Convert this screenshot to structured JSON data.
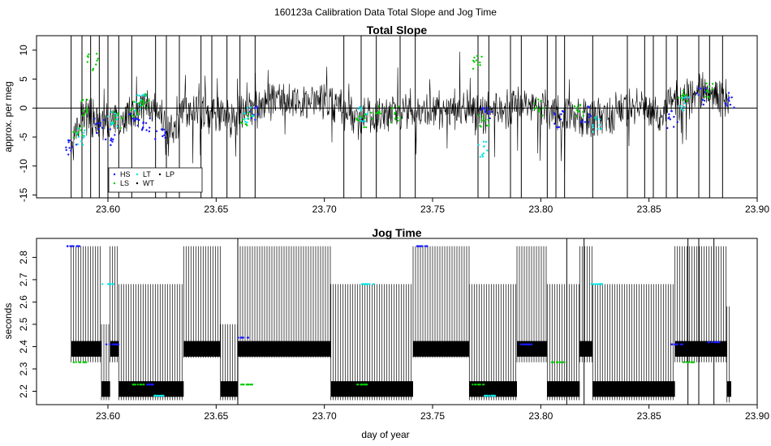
{
  "title": "160123a   Calibration Data Total Slope and Jog Time",
  "chart_data": [
    {
      "type": "scatter",
      "title": "Total Slope",
      "xlabel": "",
      "ylabel": "approx. per meg",
      "xlim": [
        23.567,
        23.9
      ],
      "ylim": [
        -15.5,
        12.5
      ],
      "xticks": [
        "23.60",
        "23.65",
        "23.70",
        "23.75",
        "23.80",
        "23.85",
        "23.90"
      ],
      "yticks": [
        "-15",
        "-10",
        "-5",
        "0",
        "5",
        "10"
      ],
      "reference_line_y": 0,
      "series": [
        {
          "name": "HS",
          "color": "#1a1aff",
          "x": [
            23.583,
            23.596,
            23.601,
            23.612,
            23.618,
            23.624,
            23.667,
            23.775,
            23.808,
            23.821,
            23.861,
            23.874,
            23.887
          ],
          "y": [
            -7,
            -3,
            -5,
            -2,
            -3,
            -4,
            -1,
            -1,
            -2,
            -1,
            -2,
            2,
            1.5
          ]
        },
        {
          "name": "LS",
          "color": "#00cc00",
          "x": [
            23.586,
            23.589,
            23.593,
            23.605,
            23.613,
            23.617,
            23.664,
            23.717,
            23.724,
            23.733,
            23.771,
            23.774,
            23.799,
            23.818,
            23.866,
            23.877
          ],
          "y": [
            -4,
            0,
            8,
            -2,
            0,
            1,
            -2,
            -2,
            -1,
            -1,
            8,
            -2,
            0,
            0,
            2,
            3
          ]
        },
        {
          "name": "LT",
          "color": "#00e5e5",
          "x": [
            23.588,
            23.602,
            23.615,
            23.665,
            23.718,
            23.773,
            23.826,
            23.866
          ],
          "y": [
            -5,
            -2,
            1,
            -1,
            -1,
            -7,
            -3,
            1
          ]
        },
        {
          "name": "WT",
          "color": "#000000",
          "x": [
            23.64,
            23.68,
            23.71,
            23.74,
            23.79,
            23.84
          ],
          "y": [
            -2,
            -1,
            -2,
            -1,
            -2,
            -1
          ]
        },
        {
          "name": "LP",
          "color": "#000000",
          "x": [
            23.65,
            23.7,
            23.76,
            23.83,
            23.855
          ],
          "y": [
            -3,
            1,
            -2,
            0,
            -4
          ]
        }
      ],
      "legend": {
        "position": "bottom-left",
        "entries": [
          "HS",
          "LT",
          "LP",
          "LS",
          "WT"
        ]
      }
    },
    {
      "type": "line",
      "title": "Jog Time",
      "xlabel": "day of year",
      "ylabel": "seconds",
      "xlim": [
        23.567,
        23.9
      ],
      "ylim": [
        2.14,
        2.885
      ],
      "xticks": [
        "23.60",
        "23.65",
        "23.70",
        "23.75",
        "23.80",
        "23.85",
        "23.90"
      ],
      "yticks": [
        "2.2",
        "2.3",
        "2.4",
        "2.5",
        "2.6",
        "2.7",
        "2.8"
      ],
      "segments": [
        {
          "x0": 23.583,
          "x1": 23.597,
          "high": 2.85,
          "low": 2.33
        },
        {
          "x0": 23.597,
          "x1": 23.601,
          "high": 2.5,
          "low": 2.16
        },
        {
          "x0": 23.601,
          "x1": 23.605,
          "high": 2.85,
          "low": 2.33
        },
        {
          "x0": 23.605,
          "x1": 23.635,
          "high": 2.68,
          "low": 2.16
        },
        {
          "x0": 23.635,
          "x1": 23.652,
          "high": 2.85,
          "low": 2.35
        },
        {
          "x0": 23.652,
          "x1": 23.66,
          "high": 2.5,
          "low": 2.16
        },
        {
          "x0": 23.66,
          "x1": 23.703,
          "high": 2.85,
          "low": 2.35
        },
        {
          "x0": 23.703,
          "x1": 23.741,
          "high": 2.68,
          "low": 2.16
        },
        {
          "x0": 23.741,
          "x1": 23.767,
          "high": 2.85,
          "low": 2.35
        },
        {
          "x0": 23.767,
          "x1": 23.789,
          "high": 2.68,
          "low": 2.16
        },
        {
          "x0": 23.789,
          "x1": 23.803,
          "high": 2.85,
          "low": 2.33
        },
        {
          "x0": 23.803,
          "x1": 23.818,
          "high": 2.68,
          "low": 2.16
        },
        {
          "x0": 23.818,
          "x1": 23.824,
          "high": 2.85,
          "low": 2.33
        },
        {
          "x0": 23.824,
          "x1": 23.862,
          "high": 2.68,
          "low": 2.16
        },
        {
          "x0": 23.862,
          "x1": 23.886,
          "high": 2.85,
          "low": 2.33
        },
        {
          "x0": 23.886,
          "x1": 23.888,
          "high": 2.58,
          "low": 2.15
        }
      ],
      "series": [
        {
          "name": "HS",
          "color": "#1a1aff",
          "x": [
            23.584,
            23.602,
            23.62,
            23.663,
            23.745,
            23.793,
            23.863,
            23.88
          ],
          "y": [
            2.85,
            2.41,
            2.23,
            2.44,
            2.85,
            2.41,
            2.41,
            2.42
          ]
        },
        {
          "name": "LS",
          "color": "#00cc00",
          "x": [
            23.587,
            23.614,
            23.664,
            23.717,
            23.771,
            23.808,
            23.868
          ],
          "y": [
            2.33,
            2.23,
            2.23,
            2.23,
            2.23,
            2.33,
            2.33
          ]
        },
        {
          "name": "LT",
          "color": "#00e5e5",
          "x": [
            23.6,
            23.623,
            23.72,
            23.776,
            23.826
          ],
          "y": [
            2.68,
            2.18,
            2.68,
            2.18,
            2.68
          ]
        }
      ]
    }
  ]
}
